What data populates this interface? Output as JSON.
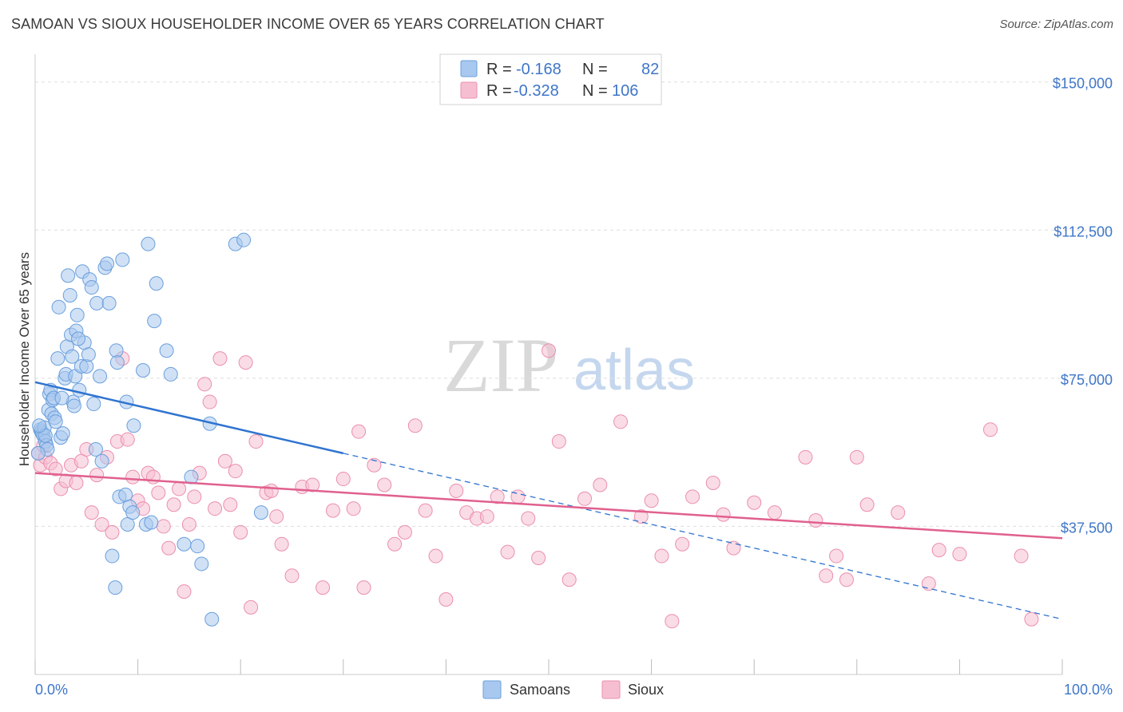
{
  "title": "SAMOAN VS SIOUX HOUSEHOLDER INCOME OVER 65 YEARS CORRELATION CHART",
  "source": "Source: ZipAtlas.com",
  "watermark": {
    "zip": "ZIP",
    "atlas": "atlas"
  },
  "legend": {
    "rows": [
      {
        "r_label": "R =",
        "r_value": "-0.168",
        "n_label": "N =",
        "n_value": "82"
      },
      {
        "r_label": "R =",
        "r_value": "-0.328",
        "n_label": "N =",
        "n_value": "106"
      }
    ]
  },
  "colors": {
    "samoans_fill": "#a9c8ef",
    "samoans_stroke": "#6a9fdc",
    "samoans_line": "#2f74d0",
    "sioux_fill": "#f6bfd1",
    "sioux_stroke": "#eb8fae",
    "sioux_line": "#e0608e",
    "grid": "#dddddd",
    "axis_text": "#3f76c8"
  },
  "chart_data": {
    "type": "scatter",
    "xlabel": "",
    "ylabel": "Householder Income Over 65 years",
    "xlim": [
      0,
      100
    ],
    "ylim": [
      0,
      155000
    ],
    "x_tick_labels": [
      "0.0%",
      "100.0%"
    ],
    "y_ticks": [
      37500,
      75000,
      112500,
      150000
    ],
    "y_tick_labels": [
      "$37,500",
      "$75,000",
      "$112,500",
      "$150,000"
    ],
    "grid": true,
    "legend_position": "top-center",
    "series": [
      {
        "name": "Samoans",
        "r": -0.168,
        "n": 82,
        "trend": {
          "x0": 0,
          "y0": 74000,
          "x1": 30,
          "y1": 56000,
          "dash_x1": 100,
          "dash_y1": 14000
        },
        "points": [
          [
            0.5,
            62000
          ],
          [
            0.6,
            61500
          ],
          [
            0.7,
            61000
          ],
          [
            0.8,
            60500
          ],
          [
            0.9,
            62500
          ],
          [
            1.0,
            59000
          ],
          [
            1.1,
            58000
          ],
          [
            1.2,
            57000
          ],
          [
            1.3,
            67000
          ],
          [
            1.4,
            71000
          ],
          [
            1.5,
            72000
          ],
          [
            1.6,
            66000
          ],
          [
            1.7,
            69500
          ],
          [
            1.8,
            70000
          ],
          [
            1.9,
            65000
          ],
          [
            2.0,
            64000
          ],
          [
            2.2,
            80000
          ],
          [
            2.3,
            93000
          ],
          [
            2.5,
            60000
          ],
          [
            2.7,
            61000
          ],
          [
            2.9,
            75000
          ],
          [
            3.0,
            76000
          ],
          [
            3.1,
            83000
          ],
          [
            3.2,
            101000
          ],
          [
            3.4,
            96000
          ],
          [
            3.5,
            86000
          ],
          [
            3.6,
            80500
          ],
          [
            3.7,
            69000
          ],
          [
            3.8,
            68000
          ],
          [
            3.9,
            75500
          ],
          [
            4.0,
            87000
          ],
          [
            4.1,
            91000
          ],
          [
            4.3,
            72000
          ],
          [
            4.5,
            78000
          ],
          [
            4.6,
            102000
          ],
          [
            4.8,
            84000
          ],
          [
            5.0,
            78000
          ],
          [
            5.2,
            81000
          ],
          [
            5.3,
            100000
          ],
          [
            5.5,
            98000
          ],
          [
            5.7,
            68500
          ],
          [
            5.9,
            57000
          ],
          [
            6.0,
            94000
          ],
          [
            6.3,
            75500
          ],
          [
            6.5,
            54000
          ],
          [
            6.8,
            103000
          ],
          [
            7.0,
            104000
          ],
          [
            7.2,
            94000
          ],
          [
            7.5,
            30000
          ],
          [
            7.8,
            22000
          ],
          [
            7.9,
            82000
          ],
          [
            8.0,
            79000
          ],
          [
            8.2,
            45000
          ],
          [
            8.5,
            105000
          ],
          [
            8.8,
            45500
          ],
          [
            8.9,
            69000
          ],
          [
            9.0,
            38000
          ],
          [
            9.2,
            42500
          ],
          [
            9.5,
            41000
          ],
          [
            9.6,
            63000
          ],
          [
            10.5,
            77000
          ],
          [
            10.8,
            38000
          ],
          [
            11.0,
            109000
          ],
          [
            11.3,
            38500
          ],
          [
            11.6,
            89500
          ],
          [
            11.8,
            99000
          ],
          [
            12.8,
            82000
          ],
          [
            13.2,
            76000
          ],
          [
            14.5,
            33000
          ],
          [
            15.2,
            50000
          ],
          [
            15.8,
            32500
          ],
          [
            16.2,
            28000
          ],
          [
            17.0,
            63500
          ],
          [
            17.2,
            14000
          ],
          [
            19.5,
            109000
          ],
          [
            20.3,
            110000
          ],
          [
            22.0,
            41000
          ],
          [
            4.2,
            85000
          ],
          [
            1.0,
            60500
          ],
          [
            0.4,
            63000
          ],
          [
            0.3,
            56000
          ],
          [
            2.6,
            70000
          ]
        ]
      },
      {
        "name": "Sioux",
        "r": -0.328,
        "n": 106,
        "trend": {
          "x0": 0,
          "y0": 51000,
          "x1": 100,
          "y1": 34500
        },
        "points": [
          [
            0.3,
            56000
          ],
          [
            0.5,
            53000
          ],
          [
            0.8,
            58000
          ],
          [
            1.0,
            55000
          ],
          [
            1.5,
            53500
          ],
          [
            2.0,
            52000
          ],
          [
            2.5,
            47000
          ],
          [
            3.0,
            49000
          ],
          [
            3.5,
            53000
          ],
          [
            4.0,
            48500
          ],
          [
            4.5,
            54000
          ],
          [
            5.0,
            57000
          ],
          [
            5.5,
            41000
          ],
          [
            6.0,
            50500
          ],
          [
            6.5,
            38000
          ],
          [
            7.0,
            55000
          ],
          [
            7.5,
            36000
          ],
          [
            8.0,
            59000
          ],
          [
            8.5,
            80000
          ],
          [
            9.0,
            59500
          ],
          [
            9.5,
            50000
          ],
          [
            10.0,
            44000
          ],
          [
            10.5,
            42000
          ],
          [
            11.0,
            51000
          ],
          [
            11.5,
            50000
          ],
          [
            12.0,
            46000
          ],
          [
            12.5,
            37500
          ],
          [
            13.0,
            32000
          ],
          [
            13.5,
            43000
          ],
          [
            14.0,
            47000
          ],
          [
            14.5,
            21000
          ],
          [
            15.0,
            38000
          ],
          [
            15.5,
            45000
          ],
          [
            16.0,
            51000
          ],
          [
            16.5,
            73500
          ],
          [
            17.0,
            69000
          ],
          [
            17.5,
            42000
          ],
          [
            18.0,
            80000
          ],
          [
            18.5,
            54000
          ],
          [
            19.0,
            43000
          ],
          [
            19.5,
            51500
          ],
          [
            20.0,
            36000
          ],
          [
            20.5,
            79000
          ],
          [
            21.0,
            17000
          ],
          [
            21.5,
            59000
          ],
          [
            22.5,
            46000
          ],
          [
            23.0,
            46500
          ],
          [
            23.5,
            40000
          ],
          [
            24.0,
            33000
          ],
          [
            25.0,
            25000
          ],
          [
            26.0,
            47500
          ],
          [
            27.0,
            48000
          ],
          [
            28.0,
            22000
          ],
          [
            29.0,
            41500
          ],
          [
            30.0,
            49500
          ],
          [
            31.0,
            42000
          ],
          [
            31.5,
            61500
          ],
          [
            32.0,
            22000
          ],
          [
            33.0,
            53000
          ],
          [
            34.0,
            48000
          ],
          [
            35.0,
            33000
          ],
          [
            36.0,
            36000
          ],
          [
            37.0,
            63000
          ],
          [
            38.0,
            41500
          ],
          [
            39.0,
            30000
          ],
          [
            40.0,
            19000
          ],
          [
            41.0,
            46500
          ],
          [
            42.0,
            41000
          ],
          [
            43.0,
            39500
          ],
          [
            44.0,
            40000
          ],
          [
            45.0,
            45000
          ],
          [
            46.0,
            31000
          ],
          [
            47.0,
            45000
          ],
          [
            48.0,
            39500
          ],
          [
            49.0,
            29500
          ],
          [
            50.0,
            82000
          ],
          [
            51.0,
            59000
          ],
          [
            52.0,
            24000
          ],
          [
            53.5,
            44500
          ],
          [
            55.0,
            48000
          ],
          [
            57.0,
            64000
          ],
          [
            59.0,
            40000
          ],
          [
            60.0,
            44000
          ],
          [
            61.0,
            30000
          ],
          [
            62.0,
            13500
          ],
          [
            63.0,
            33000
          ],
          [
            64.0,
            45000
          ],
          [
            66.0,
            48500
          ],
          [
            67.0,
            40500
          ],
          [
            68.0,
            32000
          ],
          [
            70.0,
            43500
          ],
          [
            72.0,
            41000
          ],
          [
            75.0,
            55000
          ],
          [
            76.0,
            39000
          ],
          [
            77.0,
            25000
          ],
          [
            78.0,
            30000
          ],
          [
            79.0,
            24000
          ],
          [
            80.0,
            55000
          ],
          [
            81.0,
            43000
          ],
          [
            84.0,
            41000
          ],
          [
            87.0,
            23000
          ],
          [
            88.0,
            31500
          ],
          [
            90.0,
            30500
          ],
          [
            93.0,
            62000
          ],
          [
            96.0,
            30000
          ],
          [
            97.0,
            14000
          ]
        ]
      }
    ]
  },
  "bottom_legend": [
    "Samoans",
    "Sioux"
  ]
}
